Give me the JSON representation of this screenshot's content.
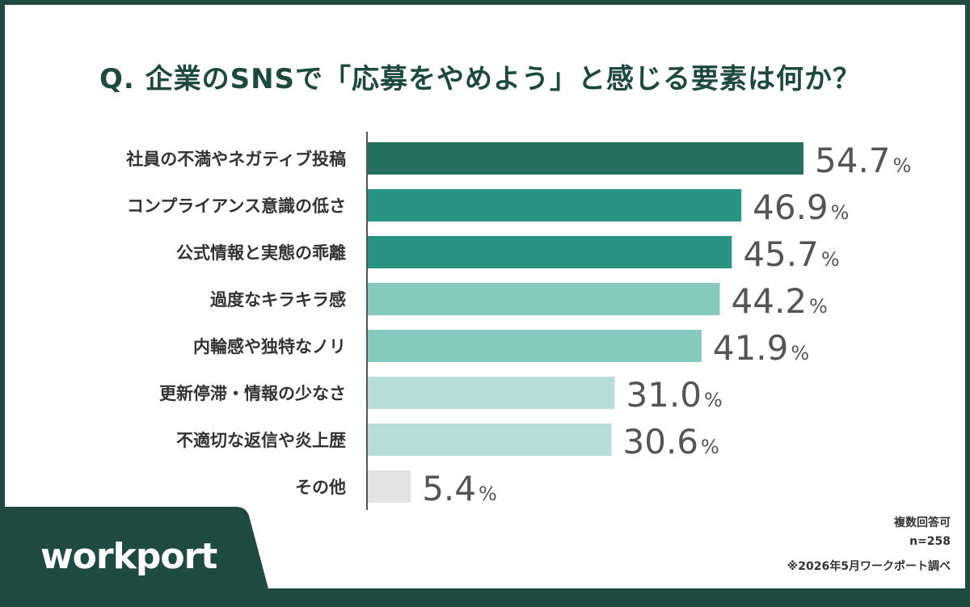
{
  "title": "Q. 企業のSNSで「応募をやめよう」と感じる要素は何か？",
  "notes": {
    "multi_answer": "複数回答可",
    "sample": "n=258",
    "source": "※2026年5月ワークポート調べ"
  },
  "brand": {
    "logo_text": "workport",
    "bg_color": "#1f4a3f",
    "accent": "#f4b400"
  },
  "chart_data": {
    "type": "bar",
    "orientation": "horizontal",
    "categories": [
      "社員の不満やネガティブ投稿",
      "コンプライアンス意識の低さ",
      "公式情報と実態の乖離",
      "過度なキラキラ感",
      "内輪感や独特なノリ",
      "更新停滞・情報の少なさ",
      "不適切な返信や炎上歴",
      "その他"
    ],
    "values": [
      54.7,
      46.9,
      45.7,
      44.2,
      41.9,
      31.0,
      30.6,
      5.4
    ],
    "value_labels": [
      "54.7",
      "46.9",
      "45.7",
      "44.2",
      "41.9",
      "31.0",
      "30.6",
      "5.4"
    ],
    "unit": "%",
    "bar_colors": [
      "#26705f",
      "#2a9484",
      "#2a9484",
      "#86c9bf",
      "#86c9bf",
      "#b7ddd8",
      "#b7ddd8",
      "#e3e3e3"
    ],
    "xlim": [
      0,
      54.7
    ],
    "grid": false,
    "legend": "none"
  }
}
